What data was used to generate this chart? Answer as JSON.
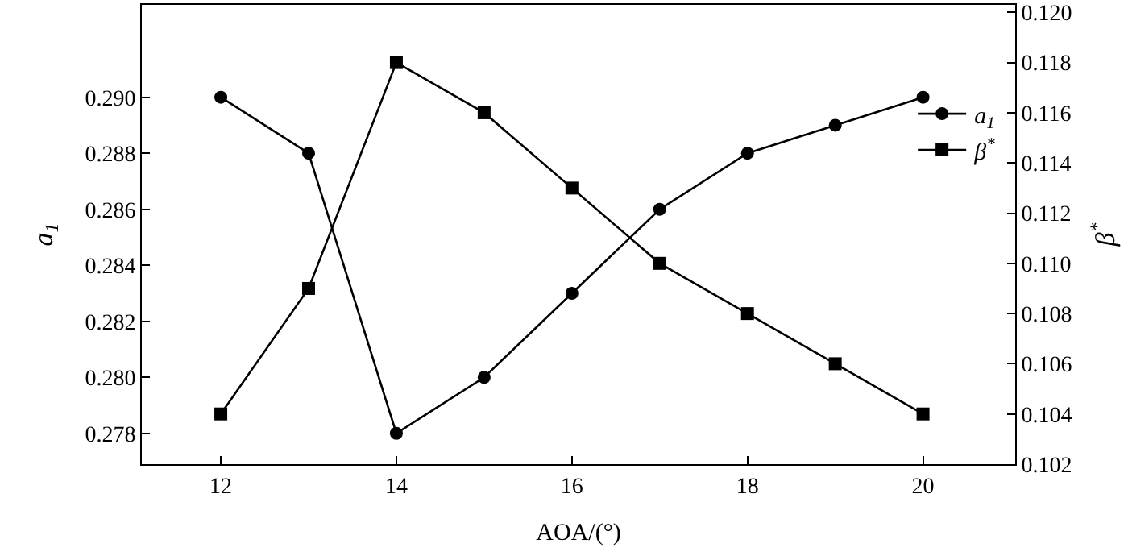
{
  "chart_data": {
    "type": "line",
    "xlabel": "AOA/(°)",
    "ylabel": "a$_{1}$",
    "y2label": "β$^{*}$",
    "x": [
      12,
      13,
      14,
      15,
      16,
      17,
      18,
      19,
      20
    ],
    "series": [
      {
        "name": "a$_{1}$",
        "color": "#000000",
        "marker": "circle",
        "values": [
          0.29,
          0.288,
          0.278,
          0.28,
          0.283,
          0.286,
          0.288,
          0.289,
          0.29
        ]
      },
      {
        "name": "β$^{*}$",
        "color": "#000000",
        "marker": "square",
        "axis": "y2",
        "values": [
          0.104,
          0.109,
          0.118,
          0.116,
          0.113,
          0.11,
          0.108,
          0.106,
          0.104
        ]
      }
    ],
    "xlim": [
      11.1,
      21.05
    ],
    "xticks": [
      12,
      14,
      16,
      18,
      20
    ],
    "ylim": [
      0.2769,
      0.2933
    ],
    "yticks": [
      0.278,
      {
        "value": 0.28,
        "label": "0.280"
      },
      0.282,
      0.284,
      0.286,
      0.288,
      {
        "value": 0.29,
        "label": "0.290"
      }
    ],
    "y2lim": [
      0.102,
      0.1203
    ],
    "y2ticks": [
      0.102,
      0.104,
      0.106,
      0.108,
      {
        "value": 0.11,
        "label": "0.110"
      },
      0.112,
      0.114,
      0.116,
      0.118,
      {
        "value": 0.12,
        "label": "0.120"
      }
    ],
    "legend": "top right",
    "line_style": "solid"
  }
}
